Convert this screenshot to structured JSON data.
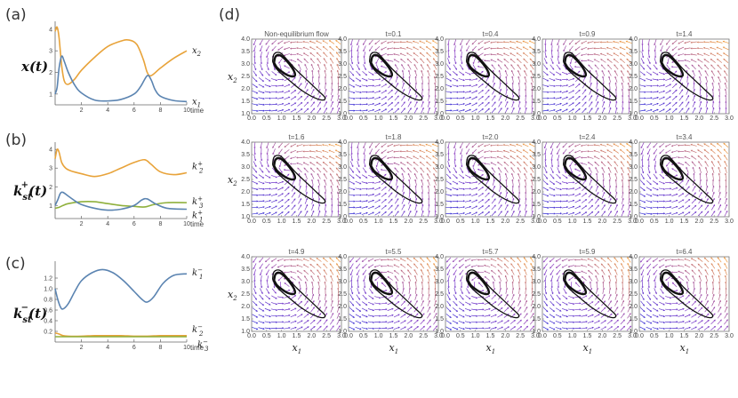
{
  "panels": {
    "a": {
      "label": "(a)",
      "ylabel": "x(t)"
    },
    "b": {
      "label": "(b)",
      "ylabel_main": "k",
      "ylabel_sub": "st",
      "ylabel_sup": "+",
      "ylabel_tail": "(t)"
    },
    "c": {
      "label": "(c)",
      "ylabel_main": "k",
      "ylabel_sub": "st",
      "ylabel_sup": "−",
      "ylabel_tail": "(t)"
    },
    "d": {
      "label": "(d)"
    }
  },
  "colors": {
    "blue": "#5b84b1",
    "orange": "#e8a33a",
    "green": "#8fb03c",
    "flow_blue": "#2a2ad6",
    "flow_purple": "#8a3cc4",
    "flow_orange": "#f09a3a",
    "cycle": "#111111"
  },
  "chart_data": [
    {
      "id": "a",
      "type": "line",
      "title": "",
      "xlabel": "time",
      "ylabel": "x(t)",
      "xlim": [
        0,
        10
      ],
      "ylim": [
        0.5,
        4.2
      ],
      "xticks": [
        "2",
        "4",
        "6",
        "8",
        "10"
      ],
      "yticks": [
        "1",
        "2",
        "3",
        "4"
      ],
      "series": [
        {
          "name": "x2",
          "sub": "2",
          "sup": "",
          "color": "orange",
          "x": [
            0,
            0.15,
            0.3,
            0.5,
            0.7,
            1.0,
            1.5,
            2,
            3,
            4,
            5,
            5.6,
            6.2,
            6.7,
            7.0,
            7.3,
            8,
            9,
            10
          ],
          "y": [
            3.9,
            4.1,
            3.6,
            2.3,
            1.6,
            1.45,
            1.7,
            2.1,
            2.7,
            3.2,
            3.45,
            3.5,
            3.3,
            2.6,
            2.0,
            1.85,
            2.2,
            2.65,
            3.0
          ]
        },
        {
          "name": "x1",
          "sub": "1",
          "sup": "",
          "color": "blue",
          "x": [
            0,
            0.15,
            0.3,
            0.5,
            0.7,
            1.0,
            1.5,
            2,
            3,
            4,
            5,
            6,
            6.5,
            7.0,
            7.3,
            7.6,
            8,
            9,
            10
          ],
          "y": [
            1.0,
            1.3,
            2.2,
            2.75,
            2.5,
            2.0,
            1.4,
            1.05,
            0.72,
            0.68,
            0.75,
            1.0,
            1.35,
            1.85,
            1.65,
            1.2,
            0.9,
            0.7,
            0.65
          ]
        }
      ]
    },
    {
      "id": "b",
      "type": "line",
      "title": "",
      "xlabel": "time",
      "ylabel": "k_st^+(t)",
      "xlim": [
        0,
        10
      ],
      "ylim": [
        0.3,
        4.2
      ],
      "xticks": [
        "2",
        "4",
        "6",
        "8",
        "10"
      ],
      "yticks": [
        "1",
        "2",
        "3",
        "4"
      ],
      "series": [
        {
          "name": "k2+",
          "sub": "2",
          "sup": "+",
          "color": "orange",
          "x": [
            0,
            0.15,
            0.3,
            0.5,
            0.8,
            1.2,
            2,
            3,
            4,
            5,
            6,
            6.8,
            7.3,
            8,
            9,
            10
          ],
          "y": [
            3.5,
            4.0,
            3.85,
            3.3,
            3.0,
            2.85,
            2.7,
            2.55,
            2.7,
            3.0,
            3.3,
            3.45,
            3.2,
            2.8,
            2.65,
            2.75
          ]
        },
        {
          "name": "k3+",
          "sub": "3",
          "sup": "+",
          "color": "green",
          "x": [
            0,
            0.3,
            0.6,
            1.0,
            2,
            3,
            4,
            5,
            6,
            6.8,
            7.5,
            8.5,
            10
          ],
          "y": [
            0.85,
            0.9,
            1.0,
            1.1,
            1.2,
            1.2,
            1.1,
            1.0,
            0.95,
            0.92,
            1.05,
            1.15,
            1.15
          ]
        },
        {
          "name": "k1+",
          "sub": "1",
          "sup": "+",
          "color": "blue",
          "x": [
            0,
            0.2,
            0.4,
            0.6,
            1.0,
            1.5,
            2,
            3,
            4,
            5,
            6,
            6.6,
            7.0,
            7.6,
            8.5,
            10
          ],
          "y": [
            1.0,
            1.3,
            1.65,
            1.7,
            1.5,
            1.25,
            1.05,
            0.85,
            0.75,
            0.8,
            1.0,
            1.3,
            1.35,
            1.1,
            0.85,
            0.8
          ]
        }
      ]
    },
    {
      "id": "c",
      "type": "line",
      "title": "",
      "xlabel": "time",
      "ylabel": "k_st^-(t)",
      "xlim": [
        0,
        10
      ],
      "ylim": [
        0.0,
        1.45
      ],
      "xticks": [
        "2",
        "4",
        "6",
        "8",
        "10"
      ],
      "yticks": [
        "0.2",
        "0.4",
        "0.6",
        "0.8",
        "1.0",
        "1.2"
      ],
      "series": [
        {
          "name": "k1-",
          "sub": "1",
          "sup": "−",
          "color": "blue",
          "x": [
            0,
            0.2,
            0.4,
            0.6,
            1.0,
            1.5,
            2,
            2.8,
            3.6,
            4.4,
            5.2,
            6,
            6.6,
            7.0,
            7.5,
            8.2,
            9,
            10
          ],
          "y": [
            1.0,
            0.8,
            0.66,
            0.62,
            0.72,
            0.95,
            1.15,
            1.3,
            1.36,
            1.3,
            1.15,
            0.95,
            0.8,
            0.75,
            0.85,
            1.1,
            1.25,
            1.28
          ]
        },
        {
          "name": "k2-",
          "sub": "2",
          "sup": "−",
          "color": "orange",
          "x": [
            0,
            0.3,
            0.6,
            1,
            2,
            3,
            4,
            5,
            6,
            7,
            8,
            9,
            10
          ],
          "y": [
            0.17,
            0.15,
            0.12,
            0.11,
            0.11,
            0.12,
            0.12,
            0.12,
            0.11,
            0.11,
            0.12,
            0.12,
            0.12
          ]
        },
        {
          "name": "k3-",
          "sub": "3",
          "sup": "−",
          "color": "green",
          "x": [
            0,
            0.3,
            0.6,
            1,
            2,
            3,
            4,
            5,
            6,
            7,
            8,
            9,
            10
          ],
          "y": [
            0.1,
            0.1,
            0.1,
            0.1,
            0.1,
            0.1,
            0.1,
            0.1,
            0.1,
            0.1,
            0.1,
            0.1,
            0.1
          ]
        }
      ]
    },
    {
      "id": "d",
      "type": "vector-field-grid",
      "xlabel": "x1",
      "ylabel": "x2",
      "xlim": [
        0.0,
        3.0
      ],
      "ylim": [
        1.0,
        4.0
      ],
      "xticks": [
        "0.0",
        "0.5",
        "1.0",
        "1.5",
        "2.0",
        "2.5",
        "3.0"
      ],
      "yticks": [
        "1.0",
        "1.5",
        "2.0",
        "2.5",
        "3.0",
        "3.5",
        "4.0"
      ],
      "panels": [
        {
          "title": "Non-equilibrium flow"
        },
        {
          "title": "t=0.1"
        },
        {
          "title": "t=0.4"
        },
        {
          "title": "t=0.9"
        },
        {
          "title": "t=1.4"
        },
        {
          "title": "t=1.6"
        },
        {
          "title": "t=1.8"
        },
        {
          "title": "t=2.0"
        },
        {
          "title": "t=2.4"
        },
        {
          "title": "t=3.4"
        },
        {
          "title": "t=4.9"
        },
        {
          "title": "t=5.5"
        },
        {
          "title": "t=5.7"
        },
        {
          "title": "t=5.9"
        },
        {
          "title": "t=6.4"
        }
      ],
      "limit_cycle": {
        "x": [
          0.7,
          0.75,
          0.95,
          1.2,
          1.5,
          1.85,
          2.2,
          2.45,
          2.35,
          2.0,
          1.6,
          1.25,
          1.0,
          0.8,
          0.7
        ],
        "y": [
          3.1,
          3.4,
          3.45,
          3.15,
          2.75,
          2.35,
          1.95,
          1.65,
          1.55,
          1.7,
          2.0,
          2.35,
          2.6,
          2.85,
          3.1
        ]
      },
      "limit_cycle_inner": {
        "x": [
          0.75,
          0.8,
          0.95,
          1.15,
          1.35,
          1.45,
          1.4,
          1.2,
          1.0,
          0.85,
          0.75
        ],
        "y": [
          3.05,
          3.3,
          3.35,
          3.15,
          2.85,
          2.6,
          2.5,
          2.55,
          2.7,
          2.85,
          3.05
        ]
      }
    }
  ]
}
